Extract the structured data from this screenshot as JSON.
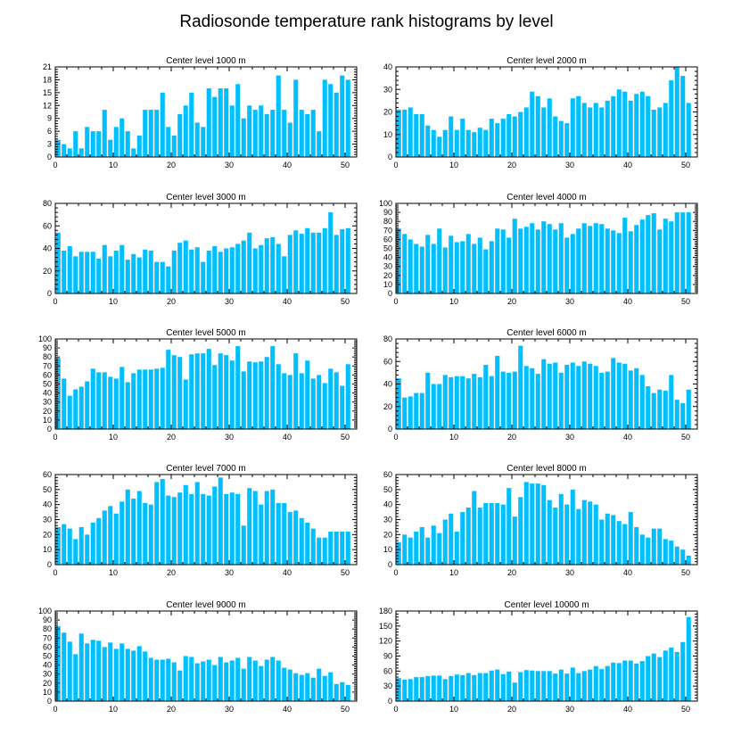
{
  "title": "Radiosonde temperature rank histograms by level",
  "colors": {
    "bar": "#00bfff",
    "frame": "#000000",
    "background": "#ffffff"
  },
  "chart_data": [
    {
      "type": "bar",
      "title": "Center level 1000 m",
      "xlabel": "",
      "ylabel": "",
      "xlim": [
        0,
        52
      ],
      "ylim": [
        0,
        21
      ],
      "xticks": [
        0,
        10,
        20,
        30,
        40,
        50
      ],
      "yticks": [
        0,
        3,
        6,
        9,
        12,
        15,
        18,
        21
      ],
      "categories": [
        1,
        2,
        3,
        4,
        5,
        6,
        7,
        8,
        9,
        10,
        11,
        12,
        13,
        14,
        15,
        16,
        17,
        18,
        19,
        20,
        21,
        22,
        23,
        24,
        25,
        26,
        27,
        28,
        29,
        30,
        31,
        32,
        33,
        34,
        35,
        36,
        37,
        38,
        39,
        40,
        41,
        42,
        43,
        44,
        45,
        46,
        47,
        48,
        49,
        50,
        51
      ],
      "values": [
        4,
        3,
        2,
        6,
        2,
        7,
        6,
        6,
        11,
        4,
        7,
        9,
        6,
        2,
        5,
        11,
        11,
        11,
        15,
        7,
        5,
        10,
        12,
        15,
        8,
        7,
        16,
        14,
        16,
        16,
        12,
        17,
        9,
        12,
        11,
        12,
        10,
        11,
        19,
        11,
        8,
        18,
        11,
        10,
        11,
        6,
        18,
        17,
        15,
        19,
        18
      ]
    },
    {
      "type": "bar",
      "title": "Center level 2000 m",
      "xlabel": "",
      "ylabel": "",
      "xlim": [
        0,
        52
      ],
      "ylim": [
        0,
        40
      ],
      "xticks": [
        0,
        10,
        20,
        30,
        40,
        50
      ],
      "yticks": [
        0,
        10,
        20,
        30,
        40
      ],
      "categories": [
        1,
        2,
        3,
        4,
        5,
        6,
        7,
        8,
        9,
        10,
        11,
        12,
        13,
        14,
        15,
        16,
        17,
        18,
        19,
        20,
        21,
        22,
        23,
        24,
        25,
        26,
        27,
        28,
        29,
        30,
        31,
        32,
        33,
        34,
        35,
        36,
        37,
        38,
        39,
        40,
        41,
        42,
        43,
        44,
        45,
        46,
        47,
        48,
        49,
        50,
        51
      ],
      "values": [
        21,
        21,
        22,
        19,
        19,
        14,
        12,
        9,
        12,
        18,
        12,
        17,
        12,
        11,
        13,
        12,
        17,
        15,
        17,
        19,
        18,
        20,
        22,
        29,
        27,
        22,
        26,
        18,
        16,
        15,
        26,
        27,
        24,
        22,
        24,
        22,
        25,
        27,
        30,
        29,
        25,
        28,
        29,
        27,
        21,
        22,
        24,
        34,
        40,
        36,
        24
      ]
    },
    {
      "type": "bar",
      "title": "Center level 3000 m",
      "xlabel": "",
      "ylabel": "",
      "xlim": [
        0,
        52
      ],
      "ylim": [
        0,
        80
      ],
      "xticks": [
        0,
        10,
        20,
        30,
        40,
        50
      ],
      "yticks": [
        0,
        20,
        40,
        60,
        80
      ],
      "categories": [
        1,
        2,
        3,
        4,
        5,
        6,
        7,
        8,
        9,
        10,
        11,
        12,
        13,
        14,
        15,
        16,
        17,
        18,
        19,
        20,
        21,
        22,
        23,
        24,
        25,
        26,
        27,
        28,
        29,
        30,
        31,
        32,
        33,
        34,
        35,
        36,
        37,
        38,
        39,
        40,
        41,
        42,
        43,
        44,
        45,
        46,
        47,
        48,
        49,
        50,
        51
      ],
      "values": [
        54,
        38,
        42,
        33,
        37,
        37,
        37,
        31,
        43,
        33,
        38,
        43,
        30,
        35,
        32,
        39,
        38,
        28,
        28,
        24,
        38,
        45,
        47,
        39,
        41,
        28,
        38,
        42,
        37,
        40,
        41,
        44,
        47,
        54,
        40,
        43,
        49,
        50,
        44,
        33,
        52,
        56,
        53,
        58,
        54,
        54,
        58,
        72,
        52,
        57,
        58
      ]
    },
    {
      "type": "bar",
      "title": "Center level 4000 m",
      "xlabel": "",
      "ylabel": "",
      "xlim": [
        0,
        52
      ],
      "ylim": [
        0,
        100
      ],
      "xticks": [
        0,
        10,
        20,
        30,
        40,
        50
      ],
      "yticks": [
        0,
        10,
        20,
        30,
        40,
        50,
        60,
        70,
        80,
        90,
        100
      ],
      "categories": [
        1,
        2,
        3,
        4,
        5,
        6,
        7,
        8,
        9,
        10,
        11,
        12,
        13,
        14,
        15,
        16,
        17,
        18,
        19,
        20,
        21,
        22,
        23,
        24,
        25,
        26,
        27,
        28,
        29,
        30,
        31,
        32,
        33,
        34,
        35,
        36,
        37,
        38,
        39,
        40,
        41,
        42,
        43,
        44,
        45,
        46,
        47,
        48,
        49,
        50,
        51
      ],
      "values": [
        72,
        66,
        60,
        55,
        52,
        65,
        55,
        72,
        51,
        64,
        57,
        58,
        66,
        55,
        62,
        49,
        58,
        72,
        71,
        62,
        83,
        72,
        74,
        78,
        71,
        80,
        77,
        71,
        78,
        62,
        66,
        72,
        78,
        75,
        78,
        77,
        72,
        70,
        67,
        84,
        69,
        76,
        82,
        87,
        89,
        71,
        83,
        80,
        90,
        90,
        90
      ]
    },
    {
      "type": "bar",
      "title": "Center level 5000 m",
      "xlabel": "",
      "ylabel": "",
      "xlim": [
        0,
        52
      ],
      "ylim": [
        0,
        100
      ],
      "xticks": [
        0,
        10,
        20,
        30,
        40,
        50
      ],
      "yticks": [
        0,
        10,
        20,
        30,
        40,
        50,
        60,
        70,
        80,
        90,
        100
      ],
      "categories": [
        1,
        2,
        3,
        4,
        5,
        6,
        7,
        8,
        9,
        10,
        11,
        12,
        13,
        14,
        15,
        16,
        17,
        18,
        19,
        20,
        21,
        22,
        23,
        24,
        25,
        26,
        27,
        28,
        29,
        30,
        31,
        32,
        33,
        34,
        35,
        36,
        37,
        38,
        39,
        40,
        41,
        42,
        43,
        44,
        45,
        46,
        47,
        48,
        49,
        50,
        51
      ],
      "values": [
        79,
        56,
        37,
        44,
        47,
        53,
        67,
        63,
        63,
        58,
        56,
        69,
        52,
        62,
        66,
        66,
        66,
        67,
        68,
        88,
        82,
        80,
        55,
        83,
        84,
        84,
        89,
        71,
        84,
        82,
        76,
        92,
        64,
        75,
        74,
        75,
        80,
        92,
        72,
        62,
        60,
        84,
        62,
        76,
        56,
        60,
        51,
        67,
        63,
        48,
        72
      ]
    },
    {
      "type": "bar",
      "title": "Center level 6000 m",
      "xlabel": "",
      "ylabel": "",
      "xlim": [
        0,
        52
      ],
      "ylim": [
        0,
        80
      ],
      "xticks": [
        0,
        10,
        20,
        30,
        40,
        50
      ],
      "yticks": [
        0,
        20,
        40,
        60,
        80
      ],
      "categories": [
        1,
        2,
        3,
        4,
        5,
        6,
        7,
        8,
        9,
        10,
        11,
        12,
        13,
        14,
        15,
        16,
        17,
        18,
        19,
        20,
        21,
        22,
        23,
        24,
        25,
        26,
        27,
        28,
        29,
        30,
        31,
        32,
        33,
        34,
        35,
        36,
        37,
        38,
        39,
        40,
        41,
        42,
        43,
        44,
        45,
        46,
        47,
        48,
        49,
        50,
        51
      ],
      "values": [
        45,
        28,
        29,
        32,
        32,
        50,
        40,
        40,
        48,
        46,
        47,
        47,
        45,
        49,
        46,
        57,
        47,
        65,
        51,
        50,
        51,
        74,
        56,
        54,
        49,
        62,
        58,
        59,
        50,
        57,
        59,
        56,
        60,
        58,
        56,
        50,
        51,
        63,
        59,
        58,
        52,
        54,
        48,
        38,
        32,
        35,
        34,
        48,
        26,
        23,
        35
      ]
    },
    {
      "type": "bar",
      "title": "Center level 7000 m",
      "xlabel": "",
      "ylabel": "",
      "xlim": [
        0,
        52
      ],
      "ylim": [
        0,
        60
      ],
      "xticks": [
        0,
        10,
        20,
        30,
        40,
        50
      ],
      "yticks": [
        0,
        10,
        20,
        30,
        40,
        50,
        60
      ],
      "categories": [
        1,
        2,
        3,
        4,
        5,
        6,
        7,
        8,
        9,
        10,
        11,
        12,
        13,
        14,
        15,
        16,
        17,
        18,
        19,
        20,
        21,
        22,
        23,
        24,
        25,
        26,
        27,
        28,
        29,
        30,
        31,
        32,
        33,
        34,
        35,
        36,
        37,
        38,
        39,
        40,
        41,
        42,
        43,
        44,
        45,
        46,
        47,
        48,
        49,
        50,
        51
      ],
      "values": [
        25,
        27,
        24,
        17,
        25,
        20,
        28,
        31,
        36,
        39,
        34,
        42,
        50,
        44,
        49,
        41,
        40,
        55,
        57,
        46,
        45,
        48,
        53,
        47,
        55,
        47,
        46,
        52,
        58,
        47,
        48,
        47,
        26,
        51,
        49,
        40,
        49,
        50,
        41,
        41,
        35,
        36,
        31,
        28,
        24,
        18,
        18,
        22,
        22,
        22,
        22
      ]
    },
    {
      "type": "bar",
      "title": "Center level 8000 m",
      "xlabel": "",
      "ylabel": "",
      "xlim": [
        0,
        52
      ],
      "ylim": [
        0,
        60
      ],
      "xticks": [
        0,
        10,
        20,
        30,
        40,
        50
      ],
      "yticks": [
        0,
        10,
        20,
        30,
        40,
        50,
        60
      ],
      "categories": [
        1,
        2,
        3,
        4,
        5,
        6,
        7,
        8,
        9,
        10,
        11,
        12,
        13,
        14,
        15,
        16,
        17,
        18,
        19,
        20,
        21,
        22,
        23,
        24,
        25,
        26,
        27,
        28,
        29,
        30,
        31,
        32,
        33,
        34,
        35,
        36,
        37,
        38,
        39,
        40,
        41,
        42,
        43,
        44,
        45,
        46,
        47,
        48,
        49,
        50,
        51
      ],
      "values": [
        15,
        20,
        18,
        22,
        25,
        18,
        26,
        21,
        30,
        34,
        22,
        35,
        38,
        49,
        38,
        41,
        41,
        41,
        40,
        51,
        32,
        45,
        55,
        54,
        54,
        53,
        43,
        38,
        47,
        40,
        50,
        37,
        43,
        42,
        40,
        30,
        34,
        33,
        29,
        27,
        35,
        25,
        20,
        18,
        24,
        24,
        17,
        16,
        12,
        10,
        6
      ]
    },
    {
      "type": "bar",
      "title": "Center level 9000 m",
      "xlabel": "",
      "ylabel": "",
      "xlim": [
        0,
        52
      ],
      "ylim": [
        0,
        100
      ],
      "xticks": [
        0,
        10,
        20,
        30,
        40,
        50
      ],
      "yticks": [
        0,
        10,
        20,
        30,
        40,
        50,
        60,
        70,
        80,
        90,
        100
      ],
      "categories": [
        1,
        2,
        3,
        4,
        5,
        6,
        7,
        8,
        9,
        10,
        11,
        12,
        13,
        14,
        15,
        16,
        17,
        18,
        19,
        20,
        21,
        22,
        23,
        24,
        25,
        26,
        27,
        28,
        29,
        30,
        31,
        32,
        33,
        34,
        35,
        36,
        37,
        38,
        39,
        40,
        41,
        42,
        43,
        44,
        45,
        46,
        47,
        48,
        49,
        50,
        51
      ],
      "values": [
        83,
        76,
        66,
        52,
        75,
        64,
        68,
        67,
        60,
        65,
        58,
        64,
        58,
        56,
        61,
        55,
        48,
        46,
        46,
        47,
        43,
        34,
        50,
        49,
        42,
        44,
        46,
        40,
        49,
        43,
        45,
        48,
        36,
        49,
        45,
        39,
        46,
        49,
        45,
        37,
        35,
        31,
        29,
        31,
        26,
        36,
        28,
        32,
        19,
        21,
        18
      ]
    },
    {
      "type": "bar",
      "title": "Center level 10000 m",
      "xlabel": "",
      "ylabel": "",
      "xlim": [
        0,
        52
      ],
      "ylim": [
        0,
        180
      ],
      "xticks": [
        0,
        10,
        20,
        30,
        40,
        50
      ],
      "yticks": [
        0,
        30,
        60,
        90,
        120,
        150,
        180
      ],
      "categories": [
        1,
        2,
        3,
        4,
        5,
        6,
        7,
        8,
        9,
        10,
        11,
        12,
        13,
        14,
        15,
        16,
        17,
        18,
        19,
        20,
        21,
        22,
        23,
        24,
        25,
        26,
        27,
        28,
        29,
        30,
        31,
        32,
        33,
        34,
        35,
        36,
        37,
        38,
        39,
        40,
        41,
        42,
        43,
        44,
        45,
        46,
        47,
        48,
        49,
        50,
        51
      ],
      "values": [
        46,
        43,
        44,
        48,
        48,
        50,
        51,
        51,
        44,
        50,
        53,
        52,
        56,
        52,
        56,
        56,
        61,
        63,
        54,
        59,
        37,
        58,
        62,
        61,
        60,
        60,
        60,
        55,
        63,
        55,
        67,
        56,
        60,
        63,
        70,
        64,
        70,
        77,
        76,
        81,
        81,
        75,
        80,
        90,
        95,
        88,
        101,
        107,
        98,
        118,
        168
      ]
    }
  ]
}
